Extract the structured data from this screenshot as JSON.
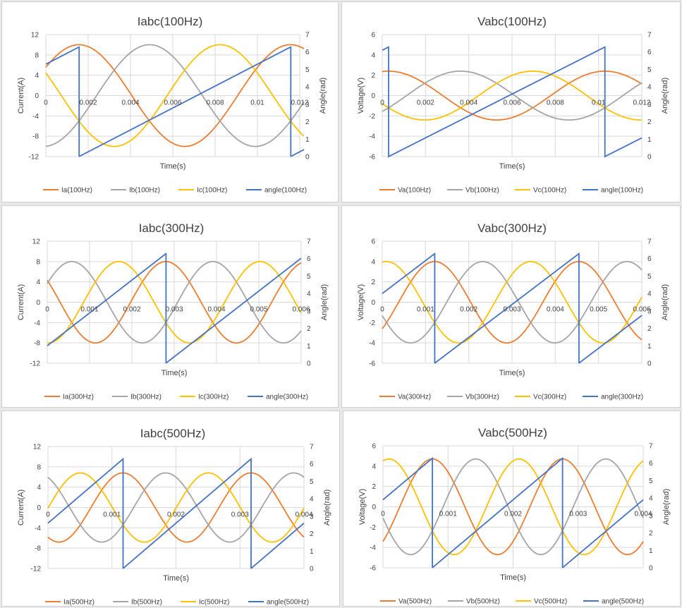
{
  "colors": {
    "a": "#ED7D31",
    "b": "#A5A5A5",
    "c": "#FFC000",
    "angle": "#4472C4"
  },
  "chart_data": [
    {
      "type": "line",
      "title": "Iabc(100Hz)",
      "freq": 100,
      "period_end": 0.0122,
      "xlabel": "Time(s)",
      "ylabel": "Current(A)",
      "y2label": "Angle(rad)",
      "xlim": [
        0,
        0.012
      ],
      "ylim": [
        -12,
        12
      ],
      "y2lim": [
        0,
        7
      ],
      "xticks": [
        "0",
        "0.002",
        "0.004",
        "0.006",
        "0.008",
        "0.01",
        "0.012"
      ],
      "yticks": [
        "12",
        "8",
        "4",
        "0",
        "-4",
        "-8",
        "-12"
      ],
      "y2ticks": [
        "7",
        "6",
        "5",
        "4",
        "3",
        "2",
        "1",
        "0"
      ],
      "amplitude": 10,
      "phase0_rad": 5.3,
      "legend": [
        "Ia(100Hz)",
        "Ib(100Hz)",
        "Ic(100Hz)",
        "angle(100Hz)"
      ]
    },
    {
      "type": "line",
      "title": "Vabc(100Hz)",
      "freq": 100,
      "period_end": 0.012,
      "xlabel": "Time(s)",
      "ylabel": "Voltage(V)",
      "y2label": "Angle(rad)",
      "xlim": [
        0,
        0.012
      ],
      "ylim": [
        -6,
        6
      ],
      "y2lim": [
        0,
        7
      ],
      "xticks": [
        "0",
        "0.002",
        "0.004",
        "0.006",
        "0.008",
        "0.01",
        "0.012"
      ],
      "yticks": [
        "6",
        "4",
        "2",
        "0",
        "-2",
        "-4",
        "-6"
      ],
      "y2ticks": [
        "7",
        "6",
        "5",
        "4",
        "3",
        "2",
        "1",
        "0"
      ],
      "amplitude": 2.4,
      "phase0_rad": 6.1,
      "legend": [
        "Va(100Hz)",
        "Vb(100Hz)",
        "Vc(100Hz)",
        "angle(100Hz)"
      ]
    },
    {
      "type": "line",
      "title": "Iabc(300Hz)",
      "freq": 300,
      "period_end": 0.006,
      "xlabel": "Time(s)",
      "ylabel": "Current(A)",
      "y2label": "Angle(rad)",
      "xlim": [
        0,
        0.006
      ],
      "ylim": [
        -12,
        12
      ],
      "y2lim": [
        0,
        7
      ],
      "xticks": [
        "0",
        "0.001",
        "0.002",
        "0.003",
        "0.004",
        "0.005",
        "0.006"
      ],
      "yticks": [
        "12",
        "8",
        "4",
        "0",
        "-4",
        "-8",
        "-12"
      ],
      "y2ticks": [
        "7",
        "6",
        "5",
        "4",
        "3",
        "2",
        "1",
        "0"
      ],
      "amplitude": 8,
      "phase0_rad": 1.0,
      "legend": [
        "Ia(300Hz)",
        "Ib(300Hz)",
        "Ic(300Hz)",
        "angle(300Hz)"
      ]
    },
    {
      "type": "line",
      "title": "Vabc(300Hz)",
      "freq": 300,
      "period_end": 0.006,
      "xlabel": "Time(s)",
      "ylabel": "Voltage(V)",
      "y2label": "Angle(rad)",
      "xlim": [
        0,
        0.006
      ],
      "ylim": [
        -6,
        6
      ],
      "y2lim": [
        0,
        7
      ],
      "xticks": [
        "0",
        "0.001",
        "0.002",
        "0.003",
        "0.004",
        "0.005",
        "0.006"
      ],
      "yticks": [
        "6",
        "4",
        "2",
        "0",
        "-2",
        "-4",
        "-6"
      ],
      "y2ticks": [
        "7",
        "6",
        "5",
        "4",
        "3",
        "2",
        "1",
        "0"
      ],
      "amplitude": 4,
      "phase0_rad": 4.0,
      "legend": [
        "Va(300Hz)",
        "Vb(300Hz)",
        "Vc(300Hz)",
        "angle(300Hz)"
      ]
    },
    {
      "type": "line",
      "title": "Iabc(500Hz)",
      "freq": 500,
      "period_end": 0.004,
      "xlabel": "Time(s)",
      "ylabel": "Current(A)",
      "y2label": "Angle(rad)",
      "xlim": [
        0,
        0.004
      ],
      "ylim": [
        -12,
        12
      ],
      "y2lim": [
        0,
        7
      ],
      "xticks": [
        "0",
        "0.001",
        "0.002",
        "0.003",
        "0.004"
      ],
      "yticks": [
        "12",
        "8",
        "4",
        "0",
        "-4",
        "-8",
        "-12"
      ],
      "y2ticks": [
        "7",
        "6",
        "5",
        "4",
        "3",
        "2",
        "1",
        "0"
      ],
      "amplitude": 6.8,
      "phase0_rad": 2.6,
      "legend": [
        "Ia(500Hz)",
        "Ib(500Hz)",
        "Ic(500Hz)",
        "angle(500Hz)"
      ]
    },
    {
      "type": "line",
      "title": "Vabc(500Hz)",
      "freq": 500,
      "period_end": 0.004,
      "xlabel": "Time(s)",
      "ylabel": "Voltage(V)",
      "y2label": "Angle(rad)",
      "xlim": [
        0,
        0.004
      ],
      "ylim": [
        -6,
        6
      ],
      "y2lim": [
        0,
        7
      ],
      "xticks": [
        "0",
        "0.001",
        "0.002",
        "0.003",
        "0.004"
      ],
      "yticks": [
        "6",
        "4",
        "2",
        "0",
        "-2",
        "-4",
        "-6"
      ],
      "y2ticks": [
        "7",
        "6",
        "5",
        "4",
        "3",
        "2",
        "1",
        "0"
      ],
      "amplitude": 4.7,
      "phase0_rad": 3.9,
      "legend": [
        "Va(500Hz)",
        "Vb(500Hz)",
        "Vc(500Hz)",
        "angle(500Hz)"
      ]
    }
  ]
}
